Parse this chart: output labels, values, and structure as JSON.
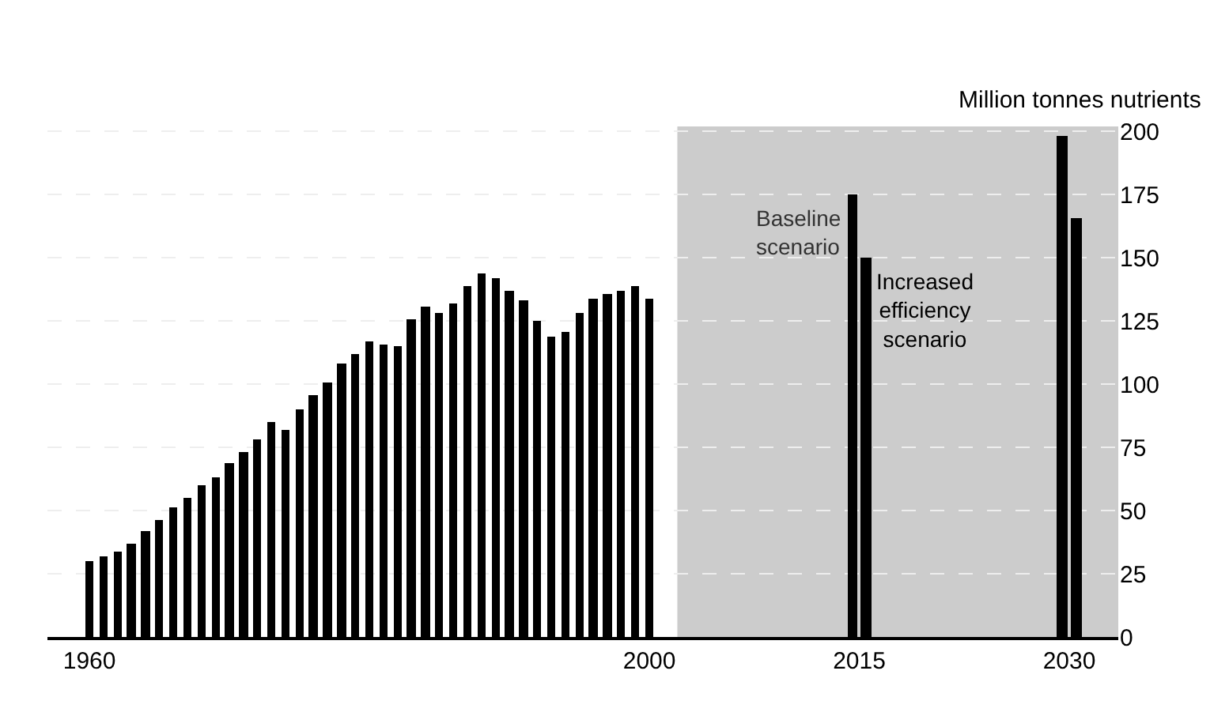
{
  "chart_data": {
    "type": "bar",
    "ylabel": "Million tonnes nutrients",
    "series": [
      {
        "color": "#000000",
        "x": [
          1960,
          1961,
          1962,
          1963,
          1964,
          1965,
          1966,
          1967,
          1968,
          1969,
          1970,
          1971,
          1972,
          1973,
          1974,
          1975,
          1976,
          1977,
          1978,
          1979,
          1980,
          1981,
          1982,
          1983,
          1984,
          1985,
          1986,
          1987,
          1988,
          1989,
          1990,
          1991,
          1992,
          1993,
          1994,
          1995,
          1996,
          1997,
          1998,
          1999,
          2000
        ],
        "values": [
          30,
          32,
          34,
          37,
          42,
          46,
          51,
          55,
          60,
          63,
          69,
          73,
          78,
          85,
          82,
          90,
          96,
          101,
          108,
          112,
          117,
          116,
          115,
          126,
          131,
          128,
          132,
          139,
          144,
          142,
          137,
          133,
          125,
          119,
          121,
          128,
          134,
          136,
          137,
          139,
          134
        ]
      },
      {
        "name": "Baseline scenario",
        "color": "#000000",
        "x": [
          2015,
          2030
        ],
        "values": [
          175,
          198
        ]
      },
      {
        "name": "Increased efficiency scenario",
        "color": "#000000",
        "x": [
          2015,
          2030
        ],
        "values": [
          150,
          166
        ]
      }
    ],
    "xlim": [
      1957,
      2033.5
    ],
    "xticks": [
      1960,
      2000,
      2015,
      2030
    ],
    "ylim": [
      0,
      202
    ],
    "yticks": [
      0,
      25,
      50,
      75,
      100,
      125,
      150,
      175,
      200
    ],
    "bands": [
      {
        "axis": "x",
        "from": 2002,
        "to": 2033.5,
        "color": "#cccccc"
      }
    ],
    "grid": "y",
    "legend": false
  }
}
